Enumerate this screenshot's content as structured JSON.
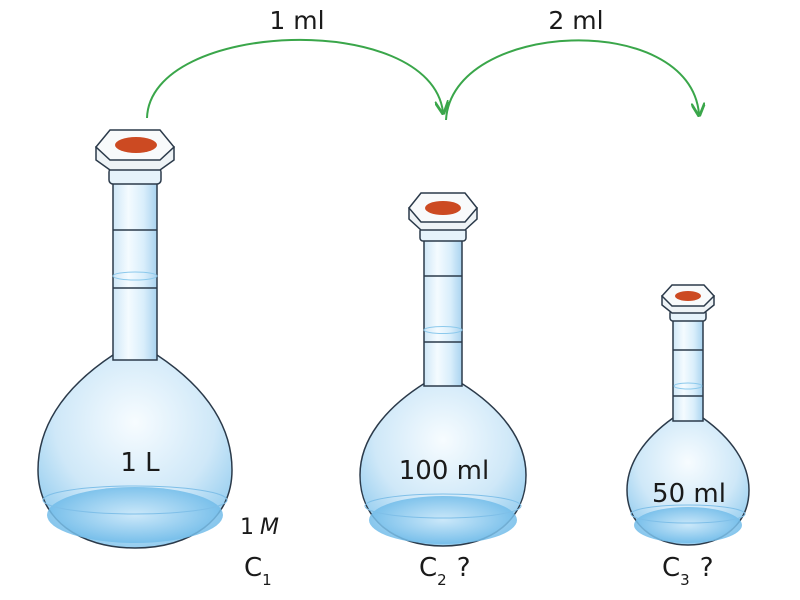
{
  "transfers": [
    {
      "label": "1 ml"
    },
    {
      "label": "2 ml"
    }
  ],
  "flasks": [
    {
      "volume_label": "1 L",
      "symbol": "C",
      "index": "1",
      "concentration_num": "1",
      "concentration_unit": "M",
      "unknown": ""
    },
    {
      "volume_label": "100 ml",
      "symbol": "C",
      "index": "2",
      "unknown": "?"
    },
    {
      "volume_label": "50 ml",
      "symbol": "C",
      "index": "3",
      "unknown": "?"
    }
  ],
  "colors": {
    "arrow": "#3aa64a",
    "stopper_seal": "#cc4a22",
    "glass_outline": "#2b3a4a",
    "liquid": "#9fd0ef"
  }
}
